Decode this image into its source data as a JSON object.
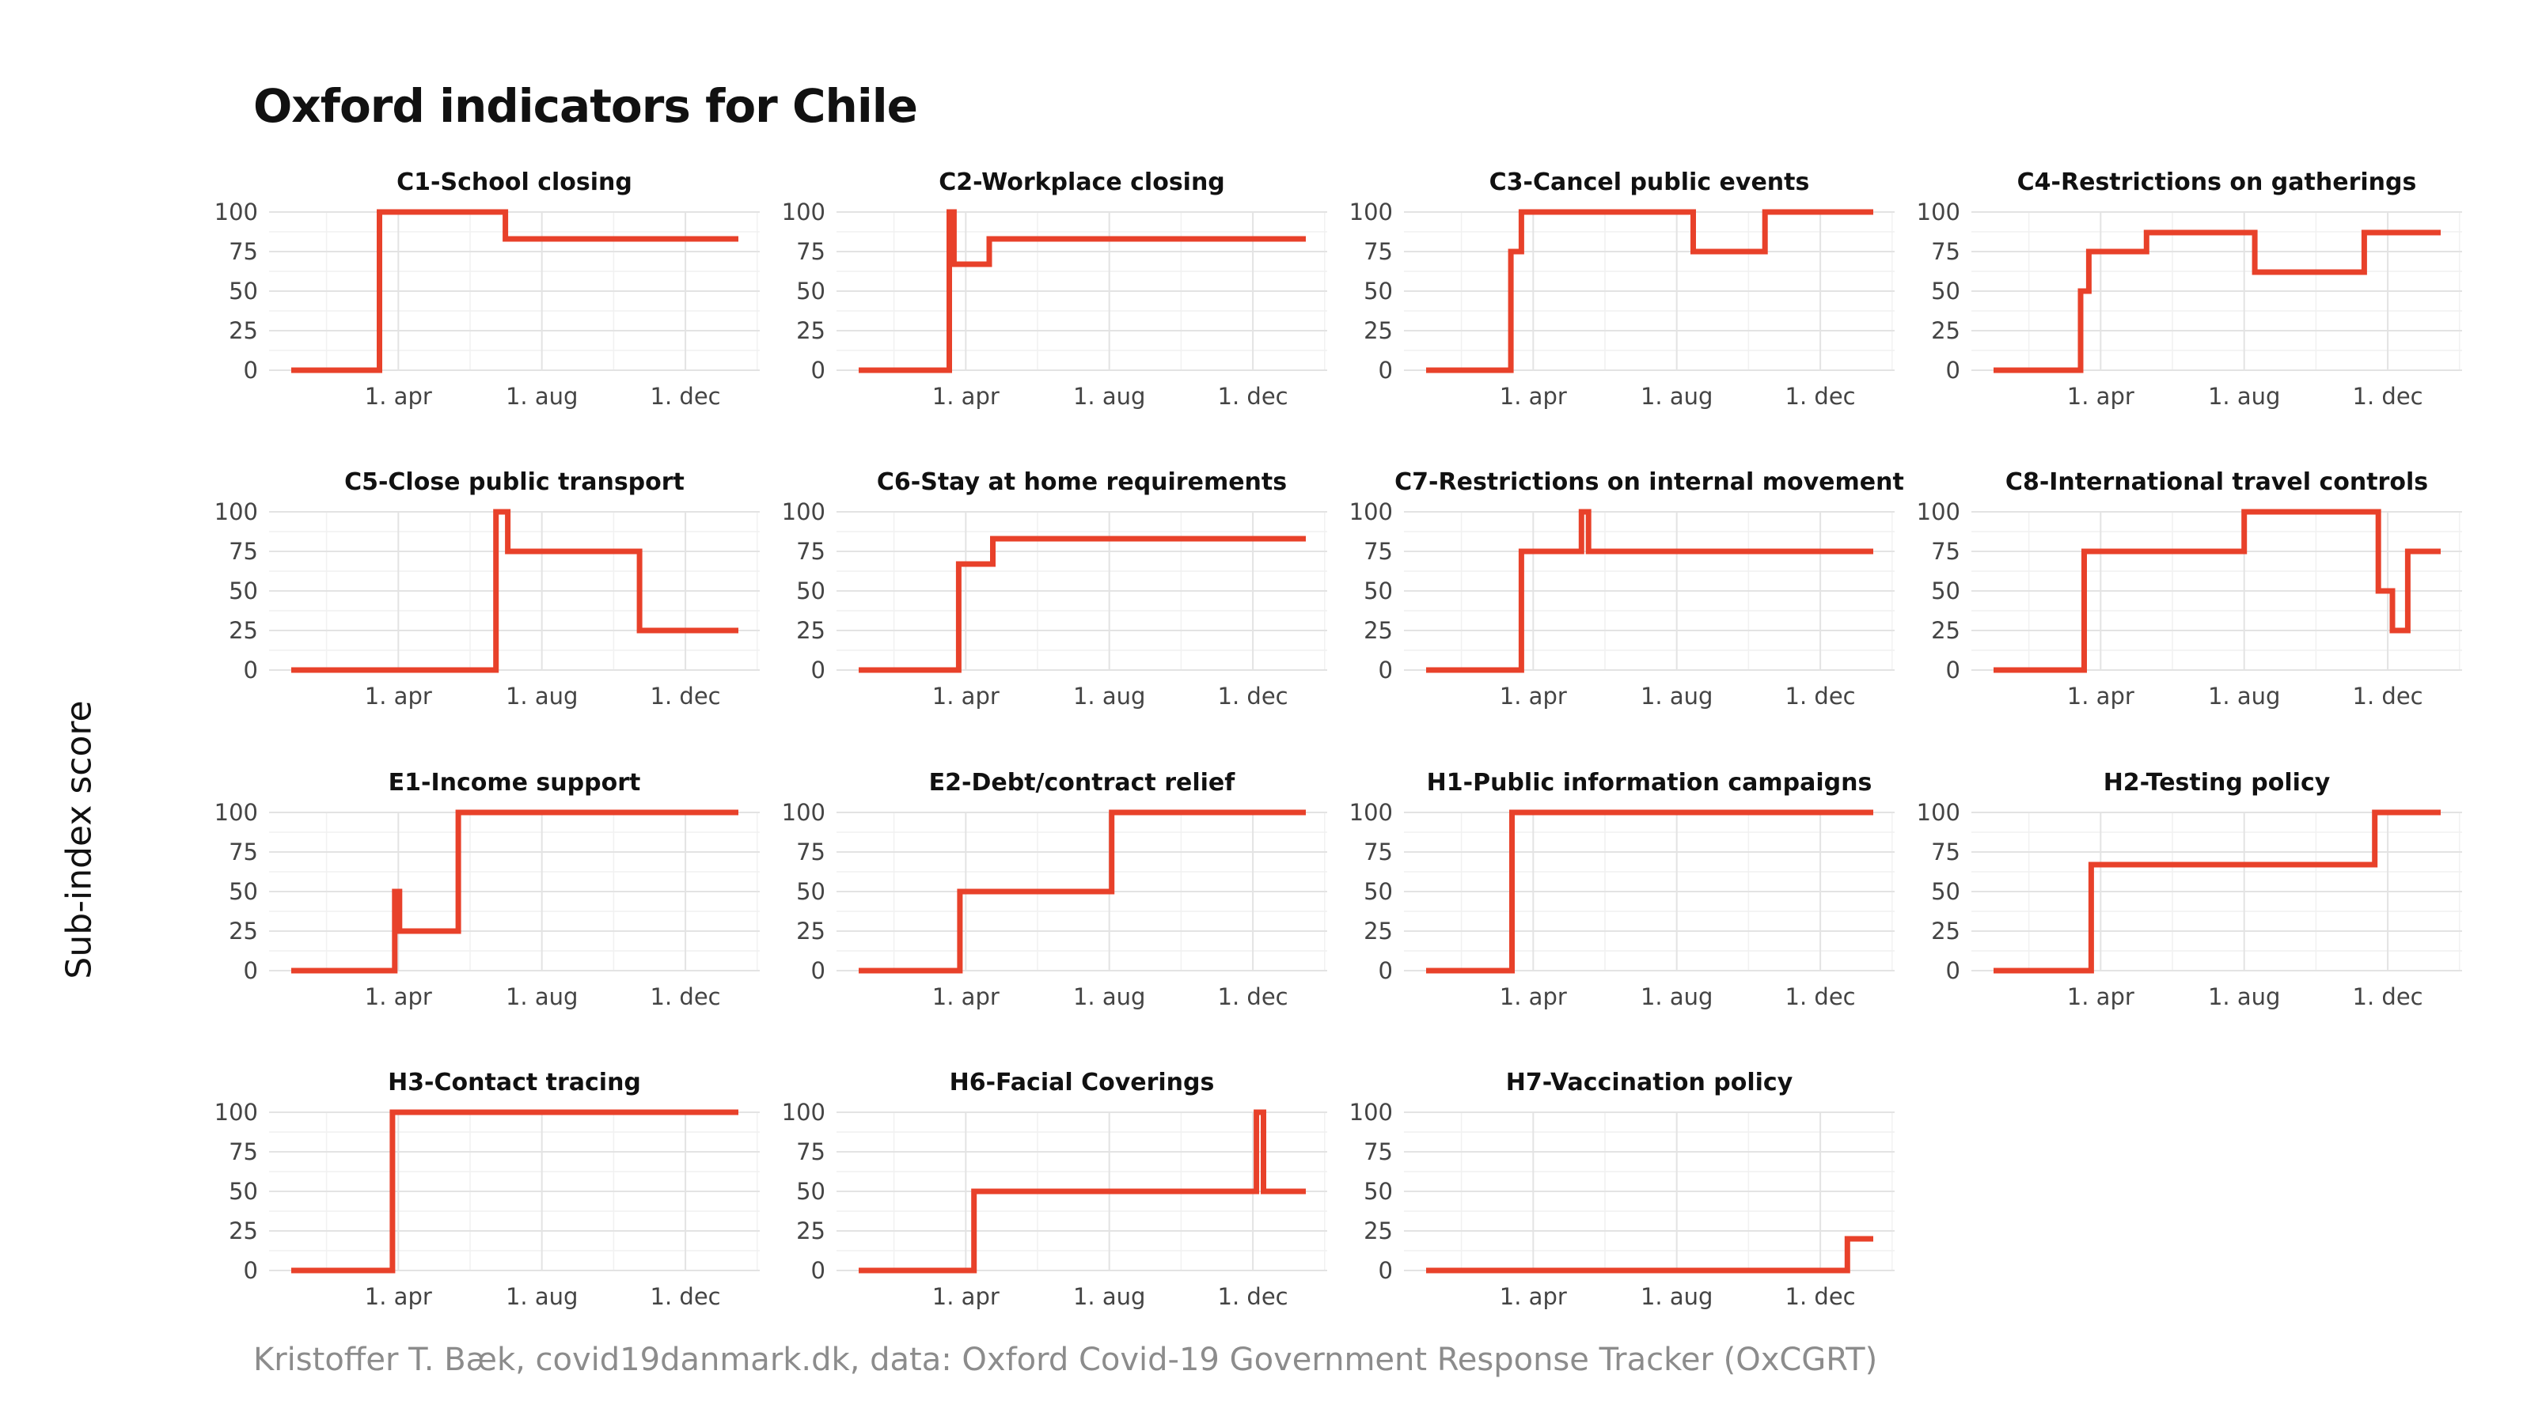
{
  "title": "Oxford indicators for Chile",
  "ylabel": "Sub-index score",
  "caption": "Kristoffer T. Bæk, covid19danmark.dk, data: Oxford Covid-19 Government Response Tracker (OxCGRT)",
  "line_color": "#e8412a",
  "chart_data": {
    "type": "line",
    "layout": "facets-4x4",
    "x_date_range": [
      "2020-01-01",
      "2021-01-15"
    ],
    "x_tick_labels": [
      {
        "date": "2020-04-01",
        "label": "1. apr"
      },
      {
        "date": "2020-08-01",
        "label": "1. aug"
      },
      {
        "date": "2020-12-01",
        "label": "1. dec"
      }
    ],
    "y_ticks": [
      0,
      25,
      50,
      75,
      100
    ],
    "ylim": [
      0,
      100
    ],
    "grid": true,
    "panels": [
      {
        "title": "C1-School closing",
        "steps": [
          [
            "2020-01-01",
            0
          ],
          [
            "2020-03-16",
            100
          ],
          [
            "2020-07-01",
            83
          ],
          [
            "2021-01-15",
            83
          ]
        ]
      },
      {
        "title": "C2-Workplace closing",
        "steps": [
          [
            "2020-01-01",
            0
          ],
          [
            "2020-03-18",
            100
          ],
          [
            "2020-03-22",
            67
          ],
          [
            "2020-04-21",
            83
          ],
          [
            "2021-01-15",
            83
          ]
        ]
      },
      {
        "title": "C3-Cancel public events",
        "steps": [
          [
            "2020-01-01",
            0
          ],
          [
            "2020-03-13",
            75
          ],
          [
            "2020-03-22",
            100
          ],
          [
            "2020-08-15",
            75
          ],
          [
            "2020-10-15",
            100
          ],
          [
            "2021-01-15",
            100
          ]
        ]
      },
      {
        "title": "C4-Restrictions on gatherings",
        "steps": [
          [
            "2020-01-01",
            0
          ],
          [
            "2020-03-15",
            50
          ],
          [
            "2020-03-22",
            75
          ],
          [
            "2020-05-10",
            87
          ],
          [
            "2020-08-10",
            62
          ],
          [
            "2020-11-11",
            87
          ],
          [
            "2021-01-15",
            87
          ]
        ]
      },
      {
        "title": "C5-Close public transport",
        "steps": [
          [
            "2020-01-01",
            0
          ],
          [
            "2020-06-23",
            100
          ],
          [
            "2020-07-03",
            75
          ],
          [
            "2020-10-23",
            25
          ],
          [
            "2021-01-15",
            25
          ]
        ]
      },
      {
        "title": "C6-Stay at home requirements",
        "steps": [
          [
            "2020-01-01",
            0
          ],
          [
            "2020-03-26",
            67
          ],
          [
            "2020-04-24",
            83
          ],
          [
            "2021-01-15",
            83
          ]
        ]
      },
      {
        "title": "C7-Restrictions on internal movement",
        "steps": [
          [
            "2020-01-01",
            0
          ],
          [
            "2020-03-22",
            75
          ],
          [
            "2020-05-12",
            100
          ],
          [
            "2020-05-18",
            75
          ],
          [
            "2021-01-15",
            75
          ]
        ]
      },
      {
        "title": "C8-International travel controls",
        "steps": [
          [
            "2020-01-01",
            0
          ],
          [
            "2020-03-18",
            75
          ],
          [
            "2020-08-01",
            100
          ],
          [
            "2020-11-23",
            50
          ],
          [
            "2020-12-05",
            25
          ],
          [
            "2020-12-18",
            75
          ],
          [
            "2021-01-15",
            75
          ]
        ]
      },
      {
        "title": "E1-Income support",
        "steps": [
          [
            "2020-01-01",
            0
          ],
          [
            "2020-03-29",
            50
          ],
          [
            "2020-04-02",
            25
          ],
          [
            "2020-05-22",
            100
          ],
          [
            "2021-01-15",
            100
          ]
        ]
      },
      {
        "title": "E2-Debt/contract relief",
        "steps": [
          [
            "2020-01-01",
            0
          ],
          [
            "2020-03-27",
            50
          ],
          [
            "2020-08-03",
            100
          ],
          [
            "2021-01-15",
            100
          ]
        ]
      },
      {
        "title": "H1-Public information campaigns",
        "steps": [
          [
            "2020-01-01",
            0
          ],
          [
            "2020-03-14",
            100
          ],
          [
            "2021-01-15",
            100
          ]
        ]
      },
      {
        "title": "H2-Testing policy",
        "steps": [
          [
            "2020-01-01",
            0
          ],
          [
            "2020-03-24",
            67
          ],
          [
            "2020-11-20",
            100
          ],
          [
            "2021-01-15",
            100
          ]
        ]
      },
      {
        "title": "H3-Contact tracing",
        "steps": [
          [
            "2020-01-01",
            0
          ],
          [
            "2020-03-27",
            100
          ],
          [
            "2021-01-15",
            100
          ]
        ]
      },
      {
        "title": "H6-Facial Coverings",
        "steps": [
          [
            "2020-01-01",
            0
          ],
          [
            "2020-04-08",
            50
          ],
          [
            "2020-12-04",
            100
          ],
          [
            "2020-12-10",
            50
          ],
          [
            "2021-01-15",
            50
          ]
        ]
      },
      {
        "title": "H7-Vaccination policy",
        "steps": [
          [
            "2020-01-01",
            0
          ],
          [
            "2020-12-24",
            20
          ],
          [
            "2021-01-15",
            20
          ]
        ]
      }
    ]
  }
}
